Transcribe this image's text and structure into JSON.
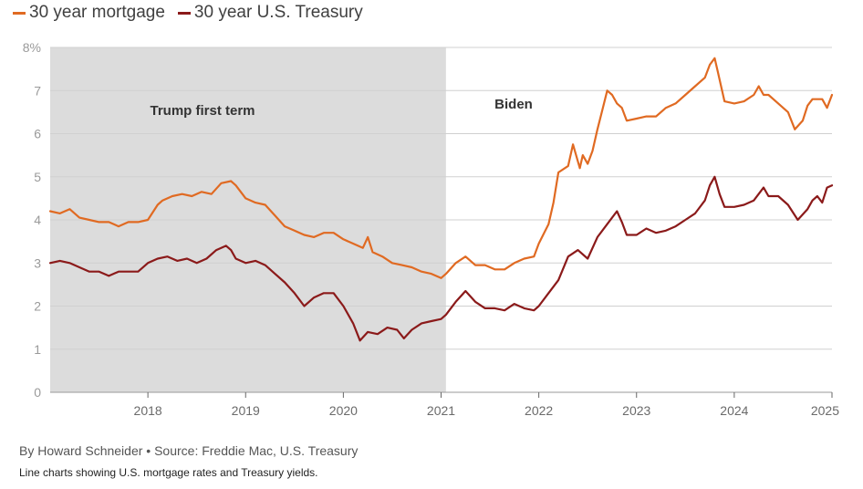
{
  "chart_data": {
    "type": "line",
    "title": "",
    "xlabel": "",
    "ylabel": "",
    "xlim": [
      2017.0,
      2025.0
    ],
    "ylim": [
      0,
      8
    ],
    "y_ticks": [
      "0",
      "1",
      "2",
      "3",
      "4",
      "5",
      "6",
      "7",
      "8%"
    ],
    "x_ticks": [
      "2018",
      "2019",
      "2020",
      "2021",
      "2022",
      "2023",
      "2024",
      "2025"
    ],
    "regions": [
      {
        "label": "Trump first term",
        "start": 2017.0,
        "end": 2021.05,
        "fill": "#dcdcdc"
      },
      {
        "label": "Biden",
        "start": 2021.05,
        "end": 2025.0,
        "fill": "none"
      }
    ],
    "series": [
      {
        "name": "30 year mortgage",
        "color": "#e06a22",
        "x": [
          2017.0,
          2017.1,
          2017.2,
          2017.3,
          2017.4,
          2017.5,
          2017.6,
          2017.7,
          2017.8,
          2017.9,
          2018.0,
          2018.1,
          2018.15,
          2018.25,
          2018.35,
          2018.45,
          2018.55,
          2018.65,
          2018.75,
          2018.85,
          2018.9,
          2019.0,
          2019.1,
          2019.2,
          2019.3,
          2019.4,
          2019.5,
          2019.6,
          2019.7,
          2019.8,
          2019.9,
          2020.0,
          2020.1,
          2020.2,
          2020.25,
          2020.3,
          2020.4,
          2020.5,
          2020.6,
          2020.7,
          2020.8,
          2020.9,
          2021.0,
          2021.05,
          2021.15,
          2021.25,
          2021.35,
          2021.45,
          2021.55,
          2021.65,
          2021.75,
          2021.85,
          2021.95,
          2022.0,
          2022.1,
          2022.15,
          2022.2,
          2022.3,
          2022.35,
          2022.42,
          2022.45,
          2022.5,
          2022.55,
          2022.6,
          2022.65,
          2022.7,
          2022.75,
          2022.8,
          2022.85,
          2022.9,
          2023.0,
          2023.1,
          2023.2,
          2023.3,
          2023.4,
          2023.5,
          2023.6,
          2023.7,
          2023.75,
          2023.8,
          2023.83,
          2023.9,
          2024.0,
          2024.1,
          2024.2,
          2024.25,
          2024.3,
          2024.35,
          2024.45,
          2024.55,
          2024.62,
          2024.7,
          2024.75,
          2024.8,
          2024.9,
          2024.95,
          2025.0
        ],
        "y": [
          4.2,
          4.15,
          4.25,
          4.05,
          4.0,
          3.95,
          3.95,
          3.85,
          3.95,
          3.95,
          4.0,
          4.35,
          4.45,
          4.55,
          4.6,
          4.55,
          4.65,
          4.6,
          4.85,
          4.9,
          4.8,
          4.5,
          4.4,
          4.35,
          4.1,
          3.85,
          3.75,
          3.65,
          3.6,
          3.7,
          3.7,
          3.55,
          3.45,
          3.35,
          3.6,
          3.25,
          3.15,
          3.0,
          2.95,
          2.9,
          2.8,
          2.75,
          2.65,
          2.75,
          3.0,
          3.15,
          2.95,
          2.95,
          2.85,
          2.85,
          3.0,
          3.1,
          3.15,
          3.45,
          3.9,
          4.4,
          5.1,
          5.25,
          5.75,
          5.2,
          5.5,
          5.3,
          5.6,
          6.1,
          6.55,
          7.0,
          6.9,
          6.7,
          6.6,
          6.3,
          6.35,
          6.4,
          6.4,
          6.6,
          6.7,
          6.9,
          7.1,
          7.3,
          7.6,
          7.75,
          7.45,
          6.75,
          6.7,
          6.75,
          6.9,
          7.1,
          6.9,
          6.9,
          6.7,
          6.5,
          6.1,
          6.3,
          6.65,
          6.8,
          6.8,
          6.6,
          6.9
        ]
      },
      {
        "name": "30 year U.S. Treasury",
        "color": "#8b1a1a",
        "x": [
          2017.0,
          2017.1,
          2017.2,
          2017.3,
          2017.4,
          2017.5,
          2017.6,
          2017.7,
          2017.8,
          2017.9,
          2018.0,
          2018.1,
          2018.2,
          2018.3,
          2018.4,
          2018.5,
          2018.6,
          2018.7,
          2018.8,
          2018.85,
          2018.9,
          2019.0,
          2019.1,
          2019.2,
          2019.3,
          2019.4,
          2019.5,
          2019.6,
          2019.7,
          2019.8,
          2019.9,
          2020.0,
          2020.1,
          2020.17,
          2020.25,
          2020.35,
          2020.45,
          2020.55,
          2020.62,
          2020.7,
          2020.8,
          2020.9,
          2021.0,
          2021.05,
          2021.15,
          2021.25,
          2021.35,
          2021.45,
          2021.55,
          2021.65,
          2021.75,
          2021.85,
          2021.95,
          2022.0,
          2022.1,
          2022.2,
          2022.3,
          2022.4,
          2022.5,
          2022.6,
          2022.7,
          2022.8,
          2022.85,
          2022.9,
          2023.0,
          2023.1,
          2023.2,
          2023.3,
          2023.4,
          2023.5,
          2023.6,
          2023.7,
          2023.75,
          2023.8,
          2023.85,
          2023.9,
          2024.0,
          2024.1,
          2024.2,
          2024.3,
          2024.35,
          2024.45,
          2024.55,
          2024.65,
          2024.75,
          2024.8,
          2024.85,
          2024.9,
          2024.95,
          2025.0
        ],
        "y": [
          3.0,
          3.05,
          3.0,
          2.9,
          2.8,
          2.8,
          2.7,
          2.8,
          2.8,
          2.8,
          3.0,
          3.1,
          3.15,
          3.05,
          3.1,
          3.0,
          3.1,
          3.3,
          3.4,
          3.3,
          3.1,
          3.0,
          3.05,
          2.95,
          2.75,
          2.55,
          2.3,
          2.0,
          2.2,
          2.3,
          2.3,
          2.0,
          1.6,
          1.2,
          1.4,
          1.35,
          1.5,
          1.45,
          1.25,
          1.45,
          1.6,
          1.65,
          1.7,
          1.8,
          2.1,
          2.35,
          2.1,
          1.95,
          1.95,
          1.9,
          2.05,
          1.95,
          1.9,
          2.0,
          2.3,
          2.6,
          3.15,
          3.3,
          3.1,
          3.6,
          3.9,
          4.2,
          3.95,
          3.65,
          3.65,
          3.8,
          3.7,
          3.75,
          3.85,
          4.0,
          4.15,
          4.45,
          4.8,
          5.0,
          4.6,
          4.3,
          4.3,
          4.35,
          4.45,
          4.75,
          4.55,
          4.55,
          4.35,
          4.0,
          4.25,
          4.45,
          4.55,
          4.4,
          4.75,
          4.8
        ]
      }
    ]
  },
  "footer": {
    "byline": "By Howard Schneider • Source: Freddie Mac, U.S. Treasury",
    "caption": "Line charts showing U.S. mortgage rates and Treasury yields."
  }
}
